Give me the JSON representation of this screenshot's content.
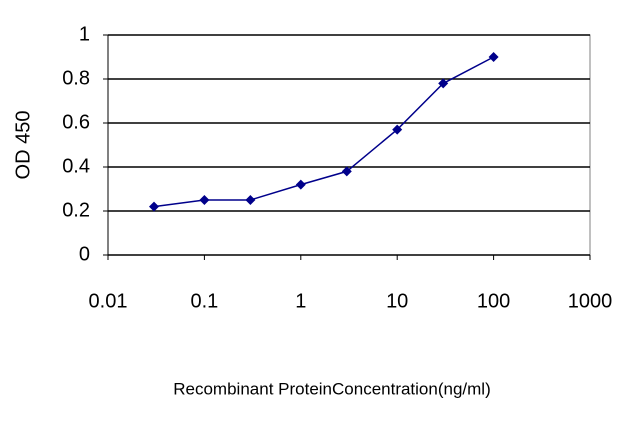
{
  "chart_data": {
    "type": "line",
    "x_label": "Recombinant ProteinConcentration(ng/ml)",
    "y_label": "OD 450",
    "x": [
      0.03,
      0.1,
      0.3,
      1,
      3,
      10,
      30,
      100
    ],
    "series": [
      {
        "color": "#00008b",
        "values": [
          0.22,
          0.25,
          0.25,
          0.32,
          0.38,
          0.57,
          0.78,
          0.9
        ]
      }
    ],
    "xscale": "log",
    "xlim": [
      0.01,
      1000
    ],
    "xticks": [
      0.01,
      0.1,
      1,
      10,
      100,
      1000
    ],
    "ylim": [
      0,
      1
    ],
    "yticks": [
      0,
      0.2,
      0.4,
      0.6,
      0.8,
      1
    ],
    "grid": true
  }
}
